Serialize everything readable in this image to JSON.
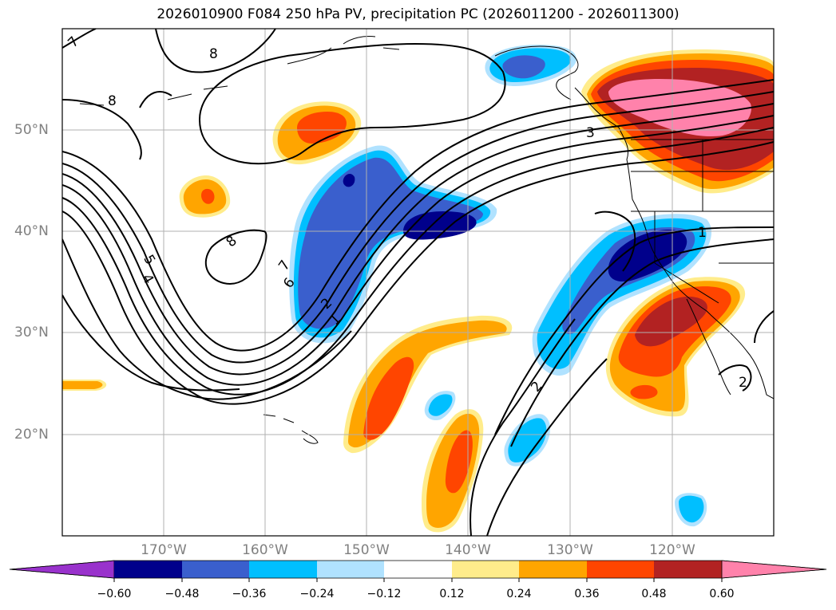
{
  "title": "2026010900 F084 250 hPa PV, precipitation PC (2026011200 - 2026011300)",
  "map": {
    "lat_labels": [
      "50°N",
      "40°N",
      "30°N",
      "20°N"
    ],
    "lon_labels": [
      "170°W",
      "160°W",
      "150°W",
      "140°W",
      "130°W",
      "120°W"
    ],
    "contour_labels": [
      "7",
      "8",
      "8",
      "8",
      "5",
      "4",
      "7",
      "6",
      "2",
      "1",
      "3",
      "2",
      "1",
      "2"
    ]
  },
  "colorbar": {
    "ticks": [
      "−0.60",
      "−0.48",
      "−0.36",
      "−0.24",
      "−0.12",
      "0.12",
      "0.24",
      "0.36",
      "0.48",
      "0.60"
    ],
    "colors": [
      "#9932cc",
      "#00008b",
      "#3a5fcd",
      "#00bfff",
      "#b0e2ff",
      "#ffffff",
      "#ffec8b",
      "#ffa500",
      "#ff4500",
      "#b22222",
      "#ff82ab"
    ]
  },
  "chart_data": {
    "type": "heatmap",
    "title": "2026010900 F084 250 hPa PV, precipitation PC (2026011200 - 2026011300)",
    "variables": [
      "250 hPa PV (contours)",
      "precipitation PC (filled)"
    ],
    "contour_levels_pv": [
      1,
      2,
      3,
      4,
      5,
      6,
      7,
      8
    ],
    "fill_levels": [
      -0.6,
      -0.48,
      -0.36,
      -0.24,
      -0.12,
      0.12,
      0.24,
      0.36,
      0.48,
      0.6
    ],
    "lat_range": [
      "10°N",
      "60°N"
    ],
    "lon_range": [
      "180°W",
      "110°W"
    ]
  }
}
